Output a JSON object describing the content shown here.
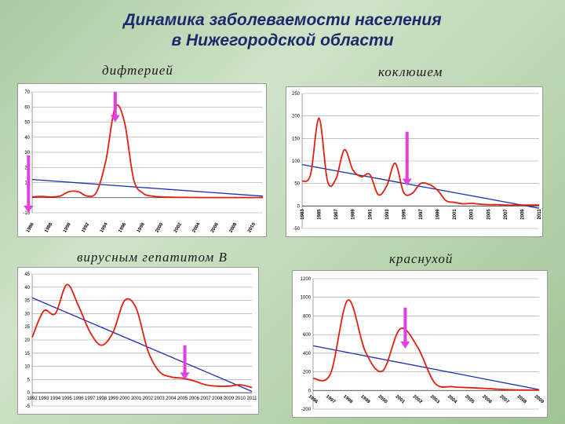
{
  "header": {
    "title_line1": "Динамика заболеваемости населения",
    "title_line2": "в Нижегородской области"
  },
  "colors": {
    "series": "#e02010",
    "trend": "#1a2fb0",
    "arrow": "#e040e0",
    "title": "#1b2a6b"
  },
  "chart_data": [
    {
      "id": "diphtheria",
      "type": "line",
      "title": "дифтерией",
      "xlabel": "",
      "ylabel": "",
      "x_ticks": [
        "1986",
        "1988",
        "1990",
        "1992",
        "1994",
        "1996",
        "1998",
        "2000",
        "2002",
        "2004",
        "2006",
        "2008",
        "2010"
      ],
      "y_ticks": [
        "-10",
        "0",
        "10",
        "20",
        "30",
        "40",
        "50",
        "60",
        "70"
      ],
      "ylim": [
        -10,
        70
      ],
      "xlim": [
        1986,
        2011
      ],
      "grid": true,
      "series": [
        {
          "x": [
            1986,
            1987,
            1988,
            1989,
            1990,
            1991,
            1992,
            1993,
            1994,
            1995,
            1996,
            1997,
            1998,
            1999,
            2000,
            2001,
            2002,
            2003,
            2004,
            2005,
            2006,
            2007,
            2008,
            2009,
            2010,
            2011
          ],
          "values": [
            0.5,
            0.8,
            0.5,
            1,
            4,
            4,
            1,
            4,
            25,
            60,
            50,
            12,
            3,
            1,
            0.5,
            0.3,
            0.2,
            0.2,
            0.1,
            0.1,
            0.1,
            0.1,
            0.1,
            0.1,
            0.1,
            0.1
          ]
        }
      ],
      "trend": [
        [
          1986,
          12
        ],
        [
          2011,
          1
        ]
      ],
      "arrows": [
        {
          "x": 1995,
          "from": 70,
          "to": 50
        },
        {
          "x": 1985.6,
          "from": 28,
          "to": -10
        }
      ]
    },
    {
      "id": "pertussis",
      "type": "line",
      "title": "коклюшем",
      "xlabel": "",
      "ylabel": "",
      "x_ticks": [
        "1983",
        "1985",
        "1987",
        "1989",
        "1991",
        "1993",
        "1995",
        "1997",
        "1999",
        "2001",
        "2003",
        "2005",
        "2007",
        "2009",
        "2011"
      ],
      "y_ticks": [
        "-50",
        "0",
        "50",
        "100",
        "150",
        "200",
        "250"
      ],
      "ylim": [
        -50,
        250
      ],
      "xlim": [
        1983,
        2011
      ],
      "grid": true,
      "series": [
        {
          "x": [
            1983,
            1984,
            1985,
            1986,
            1987,
            1988,
            1989,
            1990,
            1991,
            1992,
            1993,
            1994,
            1995,
            1996,
            1997,
            1998,
            1999,
            2000,
            2001,
            2002,
            2003,
            2004,
            2005,
            2006,
            2007,
            2008,
            2009,
            2010,
            2011
          ],
          "values": [
            55,
            70,
            195,
            55,
            60,
            125,
            80,
            65,
            70,
            25,
            45,
            95,
            30,
            28,
            50,
            48,
            35,
            12,
            8,
            5,
            6,
            4,
            3,
            3,
            2,
            2,
            2,
            2,
            2
          ]
        }
      ],
      "trend": [
        [
          1983,
          92
        ],
        [
          2011,
          -5
        ]
      ],
      "arrows": [
        {
          "x": 1995.4,
          "from": 165,
          "to": 45
        }
      ]
    },
    {
      "id": "hepatitis_b",
      "type": "line",
      "title": "вирусным гепатитом В",
      "xlabel": "",
      "ylabel": "",
      "x_ticks": [
        "1992",
        "1993",
        "1994",
        "1995",
        "1996",
        "1997",
        "1998",
        "1999",
        "2000",
        "2001",
        "2002",
        "2003",
        "2004",
        "2005",
        "2006",
        "2007",
        "2008",
        "2009",
        "2010",
        "2011"
      ],
      "y_ticks": [
        "-5",
        "0",
        "5",
        "10",
        "15",
        "20",
        "25",
        "30",
        "35",
        "40",
        "45"
      ],
      "ylim": [
        -5,
        45
      ],
      "xlim": [
        1992,
        2011
      ],
      "grid": true,
      "series": [
        {
          "x": [
            1992,
            1993,
            1994,
            1995,
            1996,
            1997,
            1998,
            1999,
            2000,
            2001,
            2002,
            2003,
            2004,
            2005,
            2006,
            2007,
            2008,
            2009,
            2010,
            2011
          ],
          "values": [
            21,
            31,
            30,
            41,
            33,
            23,
            18,
            23,
            35,
            32,
            16,
            8,
            6,
            5.5,
            4.5,
            3,
            2.5,
            2.5,
            3,
            2
          ]
        }
      ],
      "trend": [
        [
          1992,
          36
        ],
        [
          2011,
          0.5
        ]
      ],
      "arrows": [
        {
          "x": 2005.2,
          "from": 18,
          "to": 5
        }
      ]
    },
    {
      "id": "rubella",
      "type": "line",
      "title": "краснухой",
      "xlabel": "",
      "ylabel": "",
      "x_ticks": [
        "1996",
        "1997",
        "1998",
        "1999",
        "2000",
        "2001",
        "2002",
        "2003",
        "2004",
        "2005",
        "2006",
        "2007",
        "2008",
        "2009"
      ],
      "y_ticks": [
        "-200",
        "0",
        "200",
        "400",
        "600",
        "800",
        "1000",
        "1200"
      ],
      "ylim": [
        -200,
        1200
      ],
      "xlim": [
        1996,
        2009
      ],
      "grid": true,
      "series": [
        {
          "x": [
            1996,
            1997,
            1998,
            1999,
            2000,
            2001,
            2002,
            2003,
            2004,
            2005,
            2006,
            2007,
            2008,
            2009
          ],
          "values": [
            130,
            180,
            970,
            420,
            210,
            660,
            470,
            80,
            40,
            30,
            20,
            10,
            5,
            5
          ]
        }
      ],
      "trend": [
        [
          1996,
          480
        ],
        [
          2009,
          10
        ]
      ],
      "arrows": [
        {
          "x": 2001.3,
          "from": 890,
          "to": 450
        }
      ]
    }
  ]
}
